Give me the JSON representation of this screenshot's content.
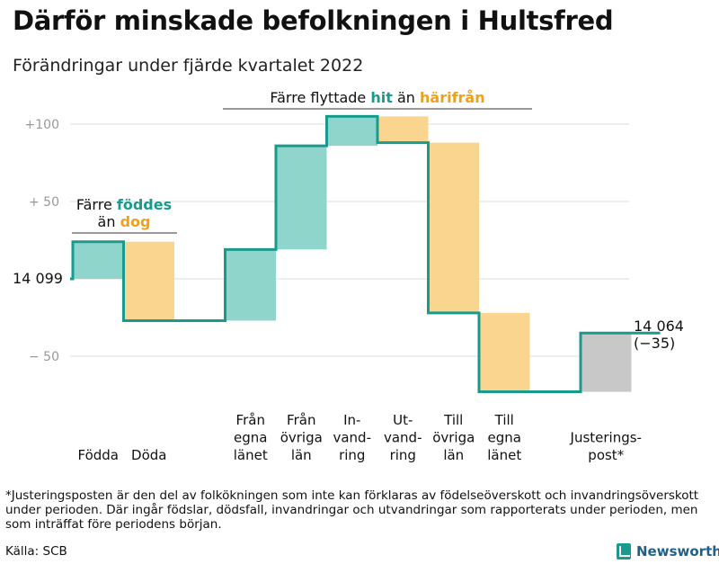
{
  "header": {
    "title": "Därför minskade befolkningen i Hultsfred",
    "subtitle": "Förändringar under fjärde kvartalet 2022"
  },
  "footer": {
    "footnote": "*Justeringsposten är den del av folkökningen som inte kan förklaras av födelseöverskott och invandringsöverskott under perioden. Där ingår födslar, dödsfall, invandringar och utvandringar som rapporterats under perioden, men som inträffat före periodens början.",
    "source": "Källa: SCB",
    "brand": "Newsworthy"
  },
  "colors": {
    "teal_line": "#1a9a8c",
    "teal_fill": "#8fd5cc",
    "orange_fill": "#fad58f",
    "orange_text": "#f0a021",
    "gray_fill": "#c8c8c8",
    "grid": "#dddddd"
  },
  "chart_data": {
    "type": "waterfall",
    "start_value": 14099,
    "start_label": "14 099",
    "end_value": 14064,
    "end_label": "14 064",
    "end_change_label": "(−35)",
    "ylim": [
      -65,
      108
    ],
    "yticks": [
      {
        "value": 100,
        "label": "+100"
      },
      {
        "value": 50,
        "label": "+ 50"
      },
      {
        "value": 0,
        "label": ""
      },
      {
        "value": -50,
        "label": "− 50"
      }
    ],
    "steps": [
      {
        "category": [
          "Födda"
        ],
        "change": 24,
        "color": "teal"
      },
      {
        "category": [
          "Döda"
        ],
        "change": -51,
        "color": "orange"
      },
      {
        "category": [
          "Från",
          "egna",
          "länet"
        ],
        "change": 46,
        "color": "teal"
      },
      {
        "category": [
          "Från",
          "övriga",
          "län"
        ],
        "change": 67,
        "color": "teal"
      },
      {
        "category": [
          "In-",
          "vand-",
          "ring"
        ],
        "change": 19,
        "color": "teal"
      },
      {
        "category": [
          "Ut-",
          "vand-",
          "ring"
        ],
        "change": -17,
        "color": "orange"
      },
      {
        "category": [
          "Till",
          "övriga",
          "län"
        ],
        "change": -110,
        "color": "orange"
      },
      {
        "category": [
          "Till",
          "egna",
          "länet"
        ],
        "change": -51,
        "color": "orange"
      },
      {
        "category": [
          "Justerings-",
          "post*"
        ],
        "change": 38,
        "color": "gray"
      }
    ],
    "annotations": [
      {
        "parts": [
          {
            "text": "Färre ",
            "style": "plain"
          },
          {
            "text": "föddes",
            "style": "teal"
          },
          {
            "text": "än ",
            "style": "plain",
            "newline": true
          },
          {
            "text": "dog",
            "style": "orange"
          }
        ]
      },
      {
        "parts": [
          {
            "text": "Färre flyttade ",
            "style": "plain"
          },
          {
            "text": "hit",
            "style": "teal"
          },
          {
            "text": " än ",
            "style": "plain"
          },
          {
            "text": "härifrån",
            "style": "orange"
          }
        ]
      }
    ]
  }
}
